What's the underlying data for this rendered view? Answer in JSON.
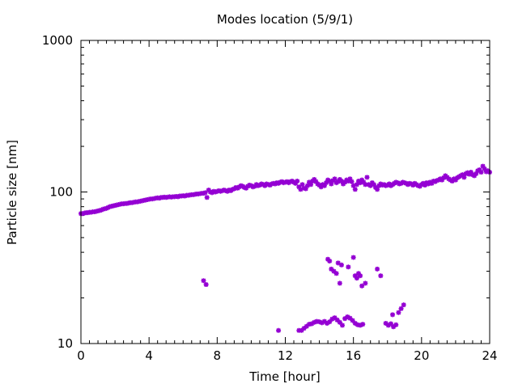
{
  "chart_data": {
    "type": "scatter",
    "title": "Modes location (5/9/1)",
    "xlabel": "Time [hour]",
    "ylabel": "Particle size [nm]",
    "xlim": [
      0,
      24
    ],
    "ylim": [
      10,
      1000
    ],
    "yscale": "log",
    "xticks": [
      0,
      4,
      8,
      12,
      16,
      20,
      24
    ],
    "xtick_labels": [
      "0",
      "4",
      "8",
      "12",
      "16",
      "20",
      "24"
    ],
    "yticks": [
      10,
      100,
      1000
    ],
    "ytick_labels": [
      "10",
      "100",
      "1000"
    ],
    "grid": false,
    "legend": "none",
    "marker_color": "#9400d3",
    "series": [
      {
        "points": [
          [
            0.0,
            72
          ],
          [
            0.1,
            72
          ],
          [
            0.2,
            72.5
          ],
          [
            0.3,
            73
          ],
          [
            0.4,
            73
          ],
          [
            0.5,
            73.5
          ],
          [
            0.6,
            73.5
          ],
          [
            0.7,
            74
          ],
          [
            0.8,
            74
          ],
          [
            0.9,
            74.5
          ],
          [
            1.0,
            75
          ],
          [
            1.1,
            75.5
          ],
          [
            1.2,
            76
          ],
          [
            1.3,
            77
          ],
          [
            1.4,
            77.5
          ],
          [
            1.5,
            78
          ],
          [
            1.6,
            79
          ],
          [
            1.7,
            80
          ],
          [
            1.8,
            80.5
          ],
          [
            1.9,
            81
          ],
          [
            2.0,
            81.5
          ],
          [
            2.1,
            82
          ],
          [
            2.2,
            82.5
          ],
          [
            2.3,
            83
          ],
          [
            2.4,
            83.5
          ],
          [
            2.5,
            83.5
          ],
          [
            2.6,
            84
          ],
          [
            2.7,
            84
          ],
          [
            2.8,
            84.5
          ],
          [
            2.9,
            85
          ],
          [
            3.0,
            85
          ],
          [
            3.1,
            85.5
          ],
          [
            3.2,
            86
          ],
          [
            3.3,
            86
          ],
          [
            3.4,
            86.5
          ],
          [
            3.5,
            87
          ],
          [
            3.6,
            87.5
          ],
          [
            3.7,
            88
          ],
          [
            3.8,
            88.5
          ],
          [
            3.9,
            89
          ],
          [
            4.0,
            89.5
          ],
          [
            4.1,
            90
          ],
          [
            4.2,
            90
          ],
          [
            4.3,
            90.5
          ],
          [
            4.4,
            91
          ],
          [
            4.5,
            91.5
          ],
          [
            4.6,
            91
          ],
          [
            4.7,
            92
          ],
          [
            4.8,
            92
          ],
          [
            4.9,
            92.5
          ],
          [
            5.0,
            92
          ],
          [
            5.1,
            92.5
          ],
          [
            5.2,
            93
          ],
          [
            5.3,
            92.5
          ],
          [
            5.4,
            93
          ],
          [
            5.5,
            93
          ],
          [
            5.6,
            93.5
          ],
          [
            5.7,
            93
          ],
          [
            5.8,
            94
          ],
          [
            5.9,
            94
          ],
          [
            6.0,
            94.5
          ],
          [
            6.1,
            94
          ],
          [
            6.2,
            95
          ],
          [
            6.3,
            95
          ],
          [
            6.4,
            95.5
          ],
          [
            6.5,
            96
          ],
          [
            6.6,
            96
          ],
          [
            6.7,
            96.5
          ],
          [
            6.8,
            97
          ],
          [
            6.9,
            97
          ],
          [
            7.0,
            97.5
          ],
          [
            7.1,
            98
          ],
          [
            7.2,
            98
          ],
          [
            7.3,
            99
          ],
          [
            7.4,
            92
          ],
          [
            7.5,
            103
          ],
          [
            7.6,
            100
          ],
          [
            7.7,
            99
          ],
          [
            7.8,
            101
          ],
          [
            7.9,
            100
          ],
          [
            8.0,
            101
          ],
          [
            8.1,
            102
          ],
          [
            8.2,
            101
          ],
          [
            8.3,
            102
          ],
          [
            8.4,
            103
          ],
          [
            8.5,
            102
          ],
          [
            8.6,
            101
          ],
          [
            8.7,
            103
          ],
          [
            8.8,
            102
          ],
          [
            8.9,
            104
          ],
          [
            9.0,
            105
          ],
          [
            9.1,
            107
          ],
          [
            9.2,
            106
          ],
          [
            9.3,
            108
          ],
          [
            9.4,
            110
          ],
          [
            9.5,
            109
          ],
          [
            9.6,
            107
          ],
          [
            9.7,
            106
          ],
          [
            9.8,
            109
          ],
          [
            9.9,
            111
          ],
          [
            10.0,
            110
          ],
          [
            10.1,
            108
          ],
          [
            10.2,
            109
          ],
          [
            10.3,
            112
          ],
          [
            10.4,
            110
          ],
          [
            10.5,
            111
          ],
          [
            10.6,
            113
          ],
          [
            10.7,
            112
          ],
          [
            10.8,
            110
          ],
          [
            10.9,
            113
          ],
          [
            11.0,
            112
          ],
          [
            11.1,
            111
          ],
          [
            11.2,
            113
          ],
          [
            11.3,
            114
          ],
          [
            11.4,
            113
          ],
          [
            11.5,
            115
          ],
          [
            11.6,
            114
          ],
          [
            11.7,
            116
          ],
          [
            11.8,
            117
          ],
          [
            11.9,
            115
          ],
          [
            12.0,
            116
          ],
          [
            12.1,
            117
          ],
          [
            12.2,
            115
          ],
          [
            12.3,
            117
          ],
          [
            12.4,
            118
          ],
          [
            12.5,
            116
          ],
          [
            12.6,
            114
          ],
          [
            12.7,
            118
          ],
          [
            12.8,
            108
          ],
          [
            12.9,
            104
          ],
          [
            13.0,
            112
          ],
          [
            13.1,
            106
          ],
          [
            13.2,
            105
          ],
          [
            13.3,
            110
          ],
          [
            13.4,
            116
          ],
          [
            13.5,
            112
          ],
          [
            13.6,
            118
          ],
          [
            13.7,
            121
          ],
          [
            13.8,
            117
          ],
          [
            13.9,
            113
          ],
          [
            14.0,
            111
          ],
          [
            14.1,
            108
          ],
          [
            14.2,
            112
          ],
          [
            14.3,
            110
          ],
          [
            14.4,
            115
          ],
          [
            14.5,
            120
          ],
          [
            14.6,
            118
          ],
          [
            14.7,
            113
          ],
          [
            14.8,
            119
          ],
          [
            14.9,
            122
          ],
          [
            15.0,
            115
          ],
          [
            15.1,
            117
          ],
          [
            15.2,
            121
          ],
          [
            15.3,
            118
          ],
          [
            15.4,
            113
          ],
          [
            15.5,
            116
          ],
          [
            15.6,
            120
          ],
          [
            15.7,
            118
          ],
          [
            15.8,
            122
          ],
          [
            15.9,
            117
          ],
          [
            16.0,
            110
          ],
          [
            16.1,
            104
          ],
          [
            16.2,
            112
          ],
          [
            16.3,
            118
          ],
          [
            16.4,
            115
          ],
          [
            16.5,
            120
          ],
          [
            16.6,
            116
          ],
          [
            16.7,
            112
          ],
          [
            16.8,
            125
          ],
          [
            16.9,
            112
          ],
          [
            17.0,
            110
          ],
          [
            17.1,
            115
          ],
          [
            17.2,
            112
          ],
          [
            17.3,
            107
          ],
          [
            17.4,
            104
          ],
          [
            17.5,
            110
          ],
          [
            17.6,
            113
          ],
          [
            17.7,
            111
          ],
          [
            17.8,
            112
          ],
          [
            17.9,
            110
          ],
          [
            18.0,
            111
          ],
          [
            18.1,
            113
          ],
          [
            18.2,
            110
          ],
          [
            18.3,
            112
          ],
          [
            18.4,
            114
          ],
          [
            18.5,
            116
          ],
          [
            18.6,
            115
          ],
          [
            18.7,
            113
          ],
          [
            18.8,
            114
          ],
          [
            18.9,
            116
          ],
          [
            19.0,
            115
          ],
          [
            19.1,
            114
          ],
          [
            19.2,
            112
          ],
          [
            19.3,
            114
          ],
          [
            19.4,
            113
          ],
          [
            19.5,
            111
          ],
          [
            19.6,
            114
          ],
          [
            19.7,
            112
          ],
          [
            19.8,
            110
          ],
          [
            19.9,
            109
          ],
          [
            20.0,
            112
          ],
          [
            20.1,
            114
          ],
          [
            20.2,
            111
          ],
          [
            20.3,
            115
          ],
          [
            20.4,
            113
          ],
          [
            20.5,
            116
          ],
          [
            20.6,
            114
          ],
          [
            20.7,
            118
          ],
          [
            20.8,
            117
          ],
          [
            20.9,
            119
          ],
          [
            21.0,
            120
          ],
          [
            21.1,
            122
          ],
          [
            21.2,
            120
          ],
          [
            21.3,
            124
          ],
          [
            21.4,
            128
          ],
          [
            21.5,
            125
          ],
          [
            21.6,
            122
          ],
          [
            21.7,
            120
          ],
          [
            21.8,
            118
          ],
          [
            21.9,
            122
          ],
          [
            22.0,
            120
          ],
          [
            22.1,
            124
          ],
          [
            22.2,
            126
          ],
          [
            22.3,
            128
          ],
          [
            22.4,
            130
          ],
          [
            22.5,
            125
          ],
          [
            22.6,
            132
          ],
          [
            22.7,
            134
          ],
          [
            22.8,
            131
          ],
          [
            22.9,
            135
          ],
          [
            23.0,
            130
          ],
          [
            23.1,
            128
          ],
          [
            23.2,
            132
          ],
          [
            23.3,
            138
          ],
          [
            23.4,
            140
          ],
          [
            23.5,
            135
          ],
          [
            23.6,
            148
          ],
          [
            23.7,
            142
          ],
          [
            23.8,
            136
          ],
          [
            23.9,
            138
          ],
          [
            24.0,
            135
          ],
          [
            7.2,
            26
          ],
          [
            7.35,
            24.5
          ],
          [
            11.6,
            12.2
          ],
          [
            12.8,
            12.2
          ],
          [
            12.95,
            12.2
          ],
          [
            13.1,
            12.6
          ],
          [
            13.25,
            13.0
          ],
          [
            13.4,
            13.4
          ],
          [
            13.55,
            13.5
          ],
          [
            13.7,
            13.8
          ],
          [
            13.85,
            14.0
          ],
          [
            14.0,
            13.9
          ],
          [
            14.15,
            13.7
          ],
          [
            14.3,
            14.0
          ],
          [
            14.45,
            13.6
          ],
          [
            14.6,
            13.9
          ],
          [
            14.75,
            14.5
          ],
          [
            14.9,
            14.8
          ],
          [
            15.05,
            14.3
          ],
          [
            15.2,
            13.8
          ],
          [
            15.35,
            13.2
          ],
          [
            15.5,
            14.6
          ],
          [
            15.65,
            15.0
          ],
          [
            15.8,
            14.7
          ],
          [
            15.95,
            14.2
          ],
          [
            16.1,
            13.6
          ],
          [
            16.25,
            13.3
          ],
          [
            16.4,
            13.2
          ],
          [
            16.55,
            13.4
          ],
          [
            14.5,
            36
          ],
          [
            14.6,
            35
          ],
          [
            14.7,
            31
          ],
          [
            14.85,
            30
          ],
          [
            15.0,
            29
          ],
          [
            15.1,
            34
          ],
          [
            15.3,
            33
          ],
          [
            15.2,
            25
          ],
          [
            15.7,
            32
          ],
          [
            16.0,
            37
          ],
          [
            16.1,
            28
          ],
          [
            16.2,
            27
          ],
          [
            16.3,
            29
          ],
          [
            16.4,
            28
          ],
          [
            16.5,
            24
          ],
          [
            16.7,
            25
          ],
          [
            17.4,
            31
          ],
          [
            17.6,
            28
          ],
          [
            17.9,
            13.6
          ],
          [
            18.05,
            13.2
          ],
          [
            18.2,
            13.5
          ],
          [
            18.35,
            12.9
          ],
          [
            18.5,
            13.3
          ],
          [
            18.3,
            15.5
          ],
          [
            18.65,
            16
          ],
          [
            18.8,
            17
          ],
          [
            18.95,
            18
          ]
        ]
      }
    ]
  }
}
